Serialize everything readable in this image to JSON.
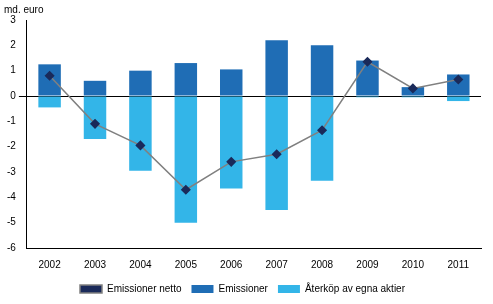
{
  "chart_data": {
    "type": "bar",
    "ylabel": "md. euro",
    "categories": [
      "2002",
      "2003",
      "2004",
      "2005",
      "2006",
      "2007",
      "2008",
      "2009",
      "2010",
      "2011"
    ],
    "series": [
      {
        "name": "Emissioner",
        "type": "bar",
        "color": "#1f6db5",
        "values": [
          1.25,
          0.6,
          1.0,
          1.3,
          1.05,
          2.2,
          2.0,
          1.4,
          0.35,
          0.85
        ]
      },
      {
        "name": "Återköp av egna aktier",
        "type": "bar",
        "color": "#33b5e8",
        "values": [
          -0.45,
          -1.7,
          -2.95,
          -5.0,
          -3.65,
          -4.5,
          -3.35,
          -0.05,
          -0.05,
          -0.2
        ]
      },
      {
        "name": "Emissioner netto",
        "type": "line",
        "color": "#808080",
        "marker": "diamond",
        "values": [
          0.8,
          -1.1,
          -1.95,
          -3.7,
          -2.6,
          -2.3,
          -1.35,
          1.35,
          0.3,
          0.65
        ]
      }
    ],
    "stacked": true,
    "ylim": [
      -6,
      3
    ],
    "yticks": [
      -6,
      -5,
      -4,
      -3,
      -2,
      -1,
      0,
      1,
      2,
      3
    ],
    "grid": false,
    "legend": "bottom"
  }
}
